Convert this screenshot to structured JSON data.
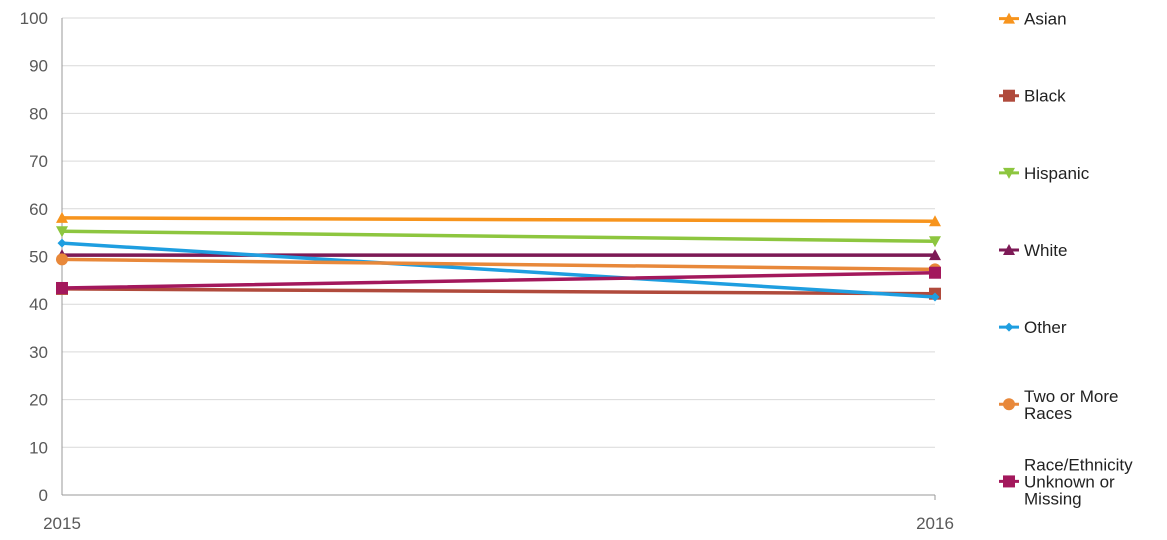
{
  "chart_data": {
    "type": "line",
    "title": "",
    "xlabel": "",
    "ylabel": "",
    "x": [
      "2015",
      "2016"
    ],
    "ylim": [
      0,
      100
    ],
    "yticks": [
      0,
      10,
      20,
      30,
      40,
      50,
      60,
      70,
      80,
      90,
      100
    ],
    "grid": true,
    "legend_position": "right",
    "series": [
      {
        "name": "Asian",
        "values": [
          58.1,
          57.4
        ],
        "color": "#f7941d",
        "marker": "triangle-up"
      },
      {
        "name": "Black",
        "values": [
          43.2,
          42.2
        ],
        "color": "#b04a3c",
        "marker": "square"
      },
      {
        "name": "Hispanic",
        "values": [
          55.3,
          53.2
        ],
        "color": "#8dc63f",
        "marker": "triangle-down"
      },
      {
        "name": "White",
        "values": [
          50.3,
          50.3
        ],
        "color": "#7d1a56",
        "marker": "triangle-up"
      },
      {
        "name": "Other",
        "values": [
          52.8,
          41.5
        ],
        "color": "#1e9ee0",
        "marker": "diamond"
      },
      {
        "name": "Two or More Races",
        "values": [
          49.4,
          47.3
        ],
        "color": "#e8883a",
        "marker": "circle"
      },
      {
        "name": "Race/Ethnicity Unknown or Missing",
        "values": [
          43.4,
          46.6
        ],
        "color": "#a3185c",
        "marker": "square"
      }
    ]
  }
}
